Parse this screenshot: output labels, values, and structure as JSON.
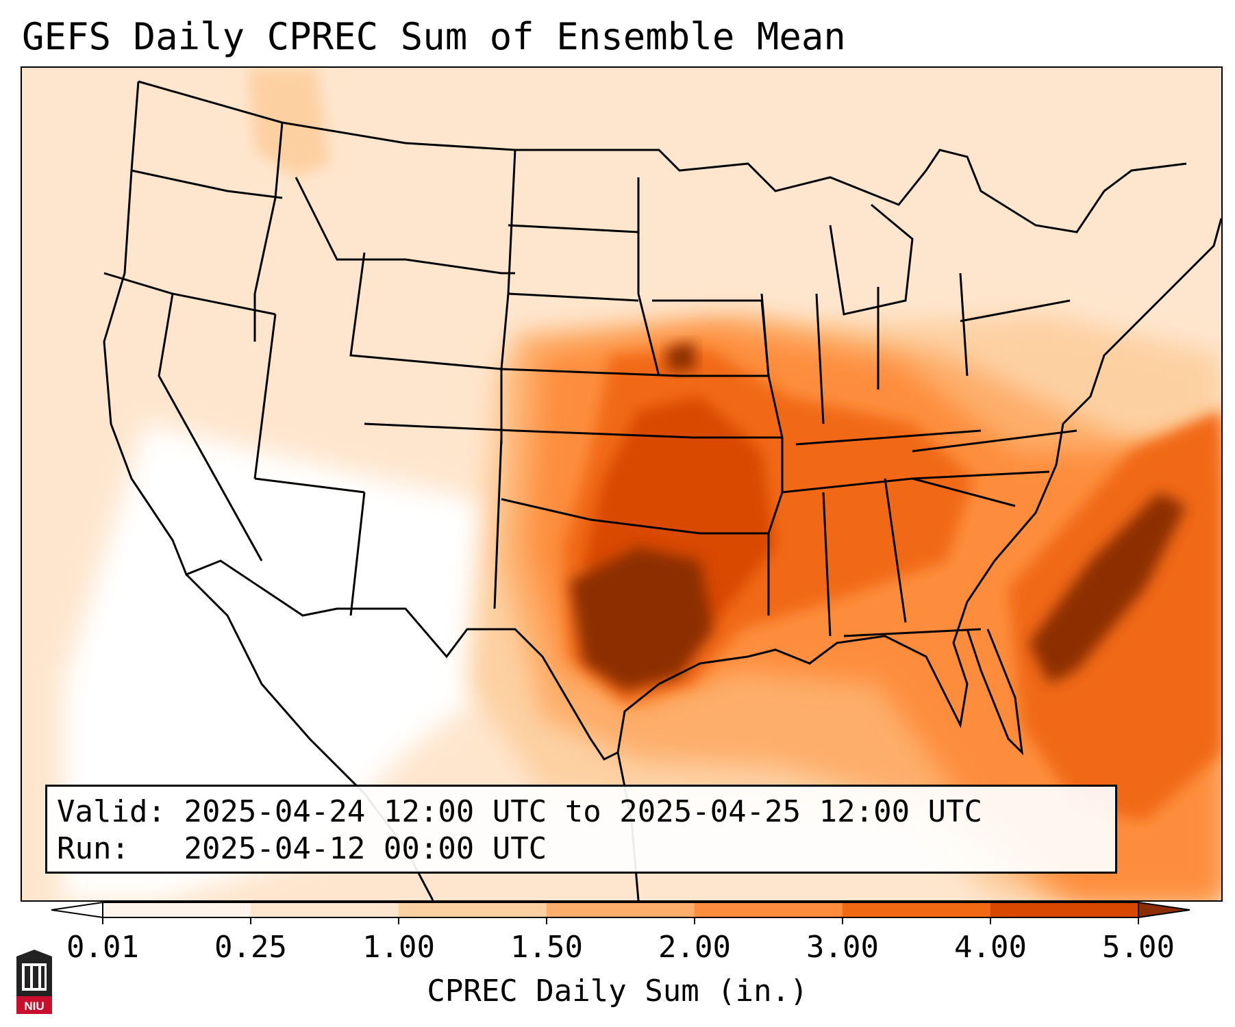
{
  "title": "GEFS Daily CPREC Sum of Ensemble Mean",
  "info": {
    "valid_label": "Valid:",
    "valid_value": "2025-04-24 12:00 UTC to 2025-04-25 12:00 UTC",
    "run_label": "Run:",
    "run_value": "2025-04-12 00:00 UTC"
  },
  "colorbar": {
    "label": "CPREC Daily Sum (in.)",
    "ticks": [
      "0.01",
      "0.25",
      "1.00",
      "1.50",
      "2.00",
      "3.00",
      "4.00",
      "5.00"
    ],
    "colors": [
      "#fff5eb",
      "#fee6ce",
      "#fdd0a2",
      "#fdae6b",
      "#fd8d3c",
      "#f16913",
      "#d94801",
      "#8c2d04"
    ],
    "extend": "both"
  },
  "precip_regions": [
    {
      "name": "southern-plains-core",
      "level": 7
    },
    {
      "name": "mid-mississippi",
      "level": 6
    },
    {
      "name": "atlantic-band",
      "level": 7
    },
    {
      "name": "ohio-valley",
      "level": 5
    },
    {
      "name": "great-lakes",
      "level": 4
    },
    {
      "name": "southeast",
      "level": 5
    },
    {
      "name": "northern-rockies",
      "level": 2
    },
    {
      "name": "southwest",
      "level": 0
    }
  ],
  "logo": {
    "text": "NIU"
  }
}
